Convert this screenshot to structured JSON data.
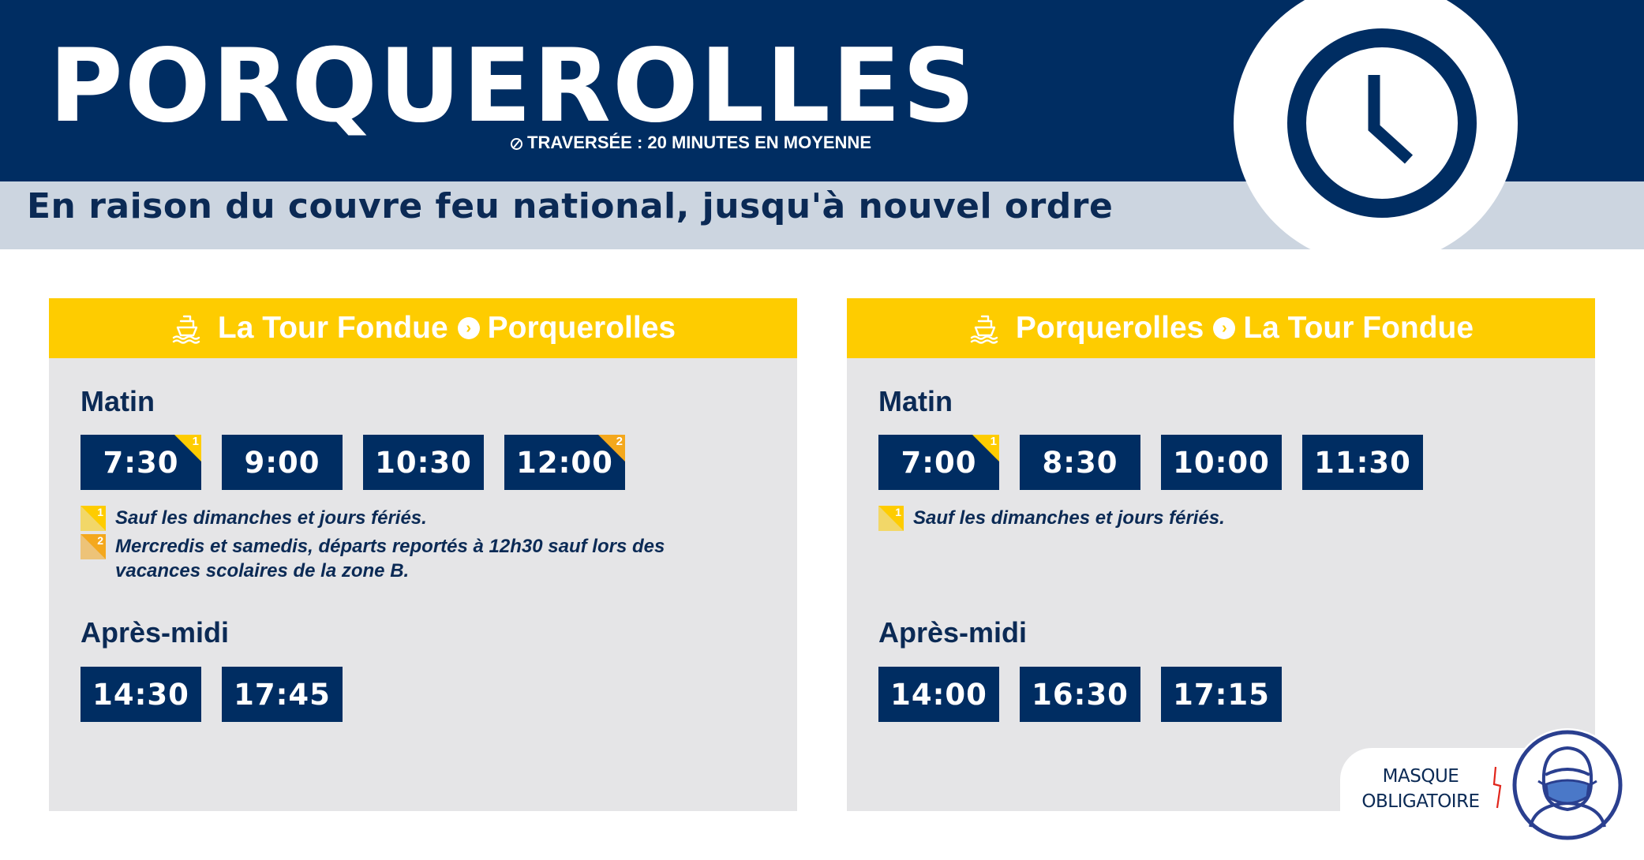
{
  "header": {
    "title": "PORQUEROLLES",
    "crossing_note": "TRAVERSÉE : 20 MINUTES EN MOYENNE",
    "notice": "En raison du couvre feu national, jusqu'à nouvel ordre",
    "icon": "clock-icon"
  },
  "colors": {
    "navy": "#002d62",
    "yellow": "#fecc00",
    "orange": "#f4a81d",
    "panel_gray": "#e5e5e7",
    "band_gray": "#ccd5e0"
  },
  "routes": [
    {
      "from": "La Tour Fondue",
      "to": "Porquerolles",
      "morning_label": "Matin",
      "morning": [
        {
          "time": "7:30",
          "badge": "1"
        },
        {
          "time": "9:00",
          "badge": ""
        },
        {
          "time": "10:30",
          "badge": ""
        },
        {
          "time": "12:00",
          "badge": "2"
        }
      ],
      "notes": [
        {
          "mark": "1",
          "text": "Sauf les dimanches et jours fériés."
        },
        {
          "mark": "2",
          "text": "Mercredis et samedis, départs reportés à 12h30 sauf lors des vacances scolaires de la zone B."
        }
      ],
      "afternoon_label": "Après-midi",
      "afternoon": [
        {
          "time": "14:30"
        },
        {
          "time": "17:45"
        }
      ]
    },
    {
      "from": "Porquerolles",
      "to": "La Tour Fondue",
      "morning_label": "Matin",
      "morning": [
        {
          "time": "7:00",
          "badge": "1"
        },
        {
          "time": "8:30",
          "badge": ""
        },
        {
          "time": "10:00",
          "badge": ""
        },
        {
          "time": "11:30",
          "badge": ""
        }
      ],
      "notes": [
        {
          "mark": "1",
          "text": "Sauf les dimanches et jours fériés."
        }
      ],
      "afternoon_label": "Après-midi",
      "afternoon": [
        {
          "time": "14:00"
        },
        {
          "time": "16:30"
        },
        {
          "time": "17:15"
        }
      ]
    }
  ],
  "mask": {
    "line1": "MASQUE",
    "line2": "OBLIGATOIRE",
    "icon": "masked-person-icon"
  }
}
